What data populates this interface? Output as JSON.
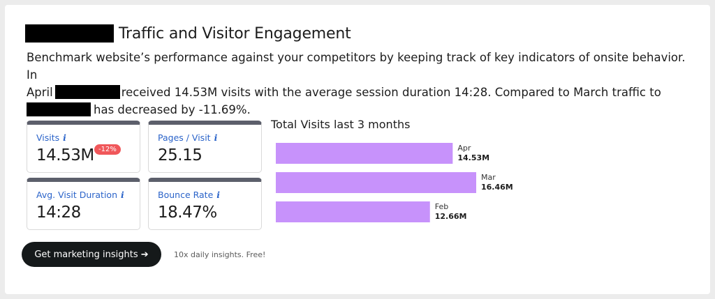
{
  "header": {
    "title": "Traffic and Visitor Engagement"
  },
  "description": {
    "line1": "Benchmark website’s performance against your competitors by keeping track of key indicators of onsite behavior. In",
    "line2_prefix": "April",
    "line2_suffix": "received 14.53M visits with the average session duration 14:28. Compared to March traffic to",
    "line3_suffix": "has decreased by -11.69%."
  },
  "metrics": [
    {
      "label": "Visits",
      "value": "14.53M",
      "badge": "-12%"
    },
    {
      "label": "Pages / Visit",
      "value": "25.15"
    },
    {
      "label": "Avg. Visit Duration",
      "value": "14:28"
    },
    {
      "label": "Bounce Rate",
      "value": "18.47%"
    }
  ],
  "info_glyph": "i",
  "chart_data": {
    "type": "bar",
    "orientation": "horizontal",
    "title": "Total Visits last 3 months",
    "categories": [
      "Apr",
      "Mar",
      "Feb"
    ],
    "values": [
      14.53,
      16.46,
      12.66
    ],
    "value_labels": [
      "14.53M",
      "16.46M",
      "12.66M"
    ],
    "unit": "M",
    "color": "#c792fb"
  },
  "cta": {
    "label": "Get marketing insights ➔",
    "note": "10x daily insights. Free!"
  },
  "colors": {
    "accent_link": "#2a63c9",
    "badge_red": "#f0575a",
    "bar": "#c792fb",
    "button_bg": "#15191a"
  }
}
